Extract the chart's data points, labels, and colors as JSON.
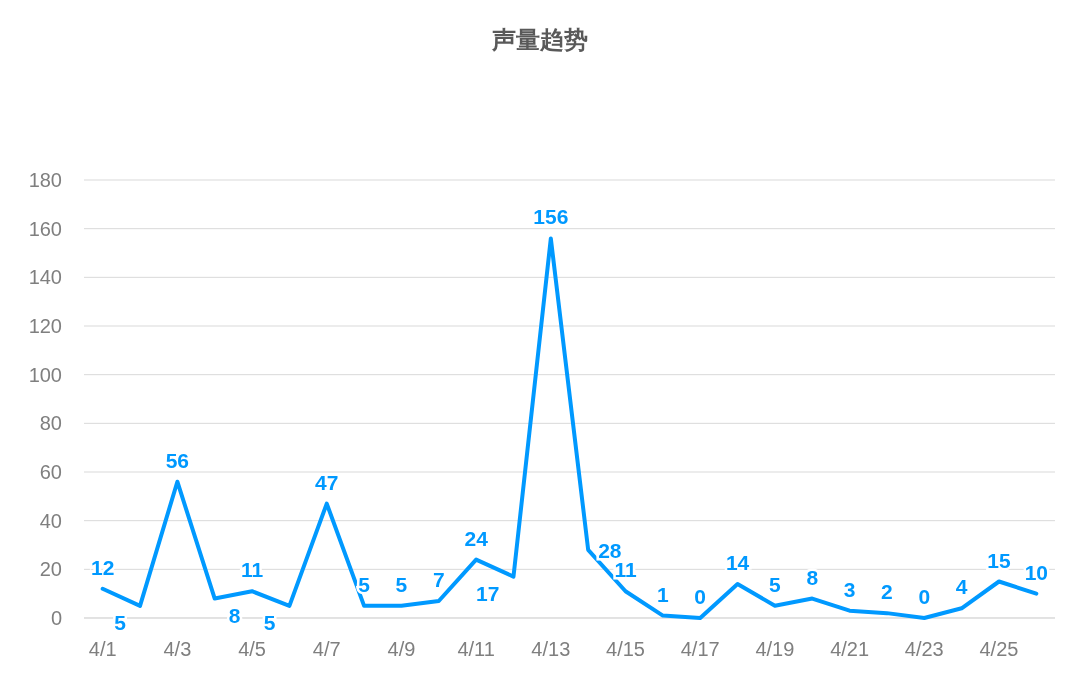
{
  "chart_data": {
    "type": "line",
    "title": "声量趋势",
    "categories": [
      "4/1",
      null,
      "4/3",
      null,
      "4/5",
      null,
      "4/7",
      null,
      "4/9",
      null,
      "4/11",
      null,
      "4/13",
      null,
      "4/15",
      null,
      "4/17",
      null,
      "4/19",
      null,
      "4/21",
      null,
      "4/23",
      null,
      "4/25",
      null
    ],
    "series": [
      {
        "color": "#0099ff",
        "values": [
          12,
          5,
          56,
          8,
          11,
          5,
          47,
          5,
          5,
          7,
          24,
          17,
          156,
          28,
          11,
          1,
          0,
          14,
          5,
          8,
          3,
          2,
          0,
          4,
          15,
          10
        ]
      }
    ],
    "ylim": [
      0,
      180
    ],
    "yticks": [
      0,
      20,
      40,
      60,
      80,
      100,
      120,
      140,
      160,
      180
    ],
    "grid": "y",
    "data_labels": true
  }
}
